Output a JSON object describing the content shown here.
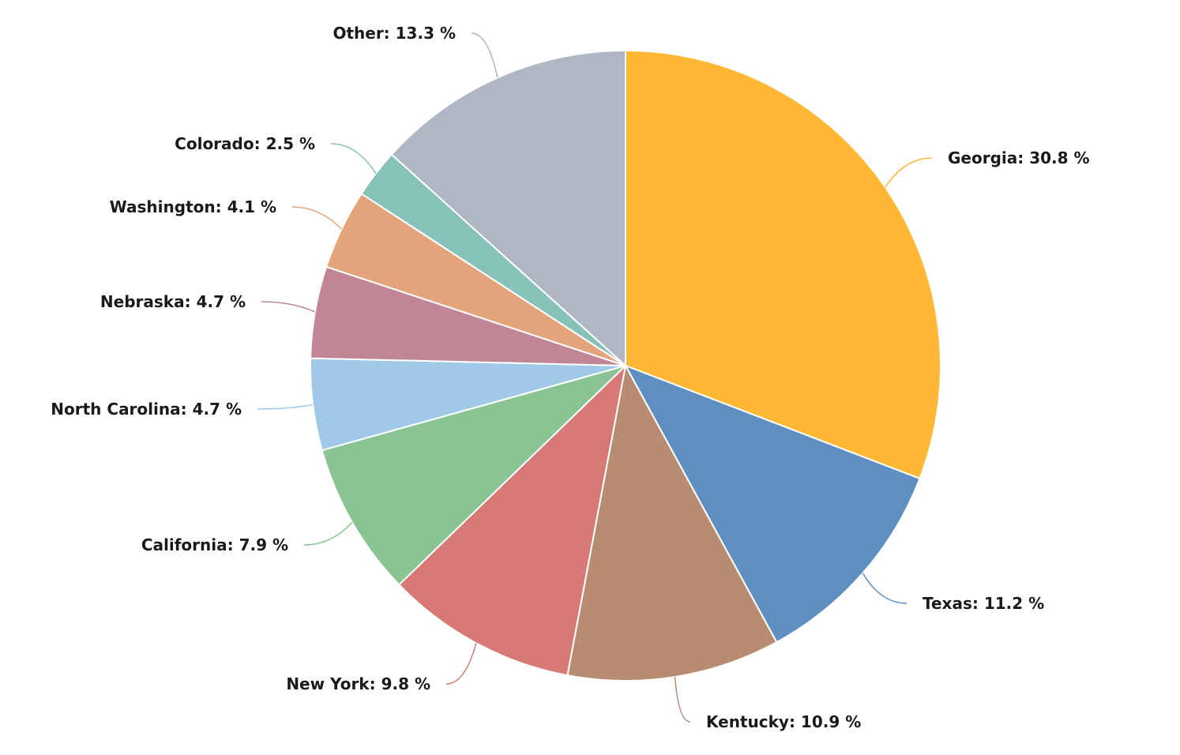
{
  "chart_data": {
    "type": "pie",
    "start_angle_deg": 0,
    "direction": "clockwise",
    "label_format": "{name}: {value} %",
    "slices": [
      {
        "name": "Georgia",
        "value": 30.8,
        "color": "#FFB734"
      },
      {
        "name": "Texas",
        "value": 11.2,
        "color": "#5F8FC1"
      },
      {
        "name": "Kentucky",
        "value": 10.9,
        "color": "#B88C70"
      },
      {
        "name": "New York",
        "value": 9.8,
        "color": "#D77975"
      },
      {
        "name": "California",
        "value": 7.9,
        "color": "#8AC394"
      },
      {
        "name": "North Carolina",
        "value": 4.7,
        "color": "#A0C9E8"
      },
      {
        "name": "Nebraska",
        "value": 4.7,
        "color": "#C08695"
      },
      {
        "name": "Washington",
        "value": 4.1,
        "color": "#E3A47B"
      },
      {
        "name": "Colorado",
        "value": 2.5,
        "color": "#86C2B9"
      },
      {
        "name": "Other",
        "value": 13.3,
        "color": "#B1B6C4"
      }
    ]
  }
}
